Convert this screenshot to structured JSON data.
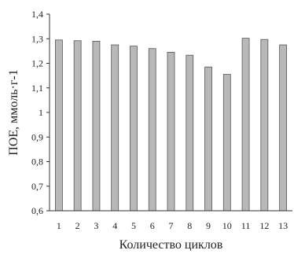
{
  "chart_data": {
    "type": "bar",
    "categories": [
      "1",
      "2",
      "3",
      "4",
      "5",
      "6",
      "7",
      "8",
      "9",
      "10",
      "11",
      "12",
      "13"
    ],
    "values": [
      1.295,
      1.292,
      1.29,
      1.275,
      1.27,
      1.26,
      1.245,
      1.233,
      1.185,
      1.155,
      1.302,
      1.297,
      1.275
    ],
    "ylabel": "ПОЕ, ммоль·г-1",
    "xlabel": "Количество циклов",
    "ylim": [
      0.6,
      1.4
    ],
    "yticks": [
      0.6,
      0.7,
      0.8,
      0.9,
      1.0,
      1.1,
      1.2,
      1.3,
      1.4
    ],
    "ytick_labels": [
      "0,6",
      "0,7",
      "0,8",
      "0,9",
      "1",
      "1,1",
      "1,2",
      "1,3",
      "1,4"
    ],
    "grid": false,
    "colors": {
      "bar_fill": "#b8b8b8",
      "bar_stroke": "#555555"
    }
  }
}
